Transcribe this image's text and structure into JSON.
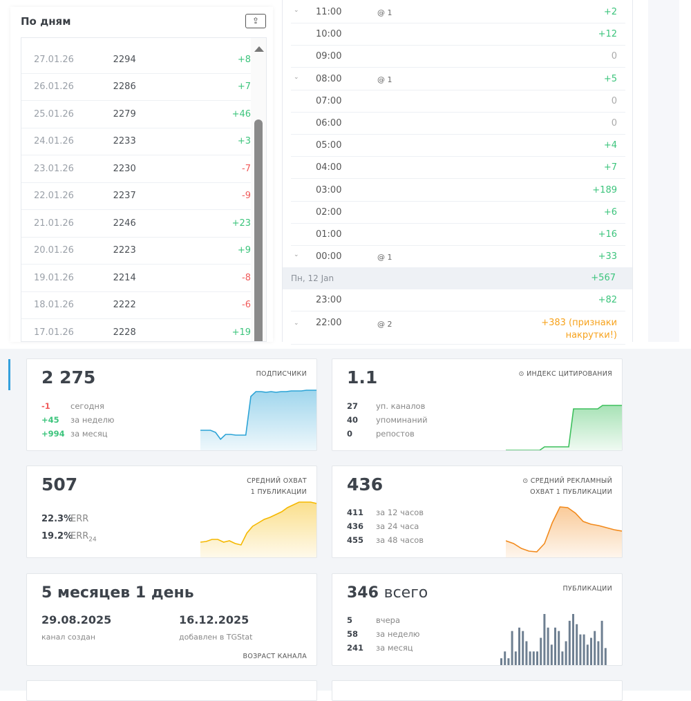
{
  "daily": {
    "title": "По дням",
    "export_icon": "upload-icon",
    "rows": [
      {
        "date": "27.01.26",
        "value": "2294",
        "change": "+8",
        "type": "pos"
      },
      {
        "date": "26.01.26",
        "value": "2286",
        "change": "+7",
        "type": "pos"
      },
      {
        "date": "25.01.26",
        "value": "2279",
        "change": "+46",
        "type": "pos"
      },
      {
        "date": "24.01.26",
        "value": "2233",
        "change": "+3",
        "type": "pos"
      },
      {
        "date": "23.01.26",
        "value": "2230",
        "change": "-7",
        "type": "neg"
      },
      {
        "date": "22.01.26",
        "value": "2237",
        "change": "-9",
        "type": "neg"
      },
      {
        "date": "21.01.26",
        "value": "2246",
        "change": "+23",
        "type": "pos"
      },
      {
        "date": "20.01.26",
        "value": "2223",
        "change": "+9",
        "type": "pos"
      },
      {
        "date": "19.01.26",
        "value": "2214",
        "change": "-8",
        "type": "neg"
      },
      {
        "date": "18.01.26",
        "value": "2222",
        "change": "-6",
        "type": "neg"
      },
      {
        "date": "17.01.26",
        "value": "2228",
        "change": "+19",
        "type": "pos"
      }
    ]
  },
  "hourly": {
    "rows": [
      {
        "time": "11:00",
        "mentions": "@ 1",
        "change": "+2",
        "type": "pos",
        "expand": true
      },
      {
        "time": "10:00",
        "change": "+12",
        "type": "pos"
      },
      {
        "time": "09:00",
        "change": "0",
        "type": "zero"
      },
      {
        "time": "08:00",
        "mentions": "@ 1",
        "change": "+5",
        "type": "pos",
        "expand": true
      },
      {
        "time": "07:00",
        "change": "0",
        "type": "zero"
      },
      {
        "time": "06:00",
        "change": "0",
        "type": "zero"
      },
      {
        "time": "05:00",
        "change": "+4",
        "type": "pos"
      },
      {
        "time": "04:00",
        "change": "+7",
        "type": "pos"
      },
      {
        "time": "03:00",
        "change": "+189",
        "type": "pos"
      },
      {
        "time": "02:00",
        "change": "+6",
        "type": "pos"
      },
      {
        "time": "01:00",
        "change": "+16",
        "type": "pos"
      },
      {
        "time": "00:00",
        "mentions": "@ 1",
        "change": "+33",
        "type": "pos",
        "expand": true
      }
    ],
    "day_header": {
      "label": "Пн, 12 Jan",
      "change": "+567"
    },
    "rows2": [
      {
        "time": "23:00",
        "change": "+82",
        "type": "pos"
      },
      {
        "time": "22:00",
        "mentions": "@ 2",
        "change": "+383 (признаки",
        "change2": "накрутки!)",
        "type": "warn",
        "expand": true
      }
    ]
  },
  "cards": {
    "subscribers": {
      "value": "2 275",
      "label": "ПОДПИСЧИКИ",
      "stats": [
        {
          "n": "-1",
          "s": "сегодня",
          "type": "neg"
        },
        {
          "n": "+45",
          "s": "за неделю",
          "type": "pos"
        },
        {
          "n": "+994",
          "s": "за месяц",
          "type": "pos"
        }
      ],
      "color": "#2ba3d6"
    },
    "citation": {
      "value": "1.1",
      "label": "ИНДЕКС ЦИТИРОВАНИЯ",
      "icon": "info-icon",
      "stats": [
        {
          "n": "27",
          "s": "уп. каналов"
        },
        {
          "n": "40",
          "s": "упоминаний"
        },
        {
          "n": "0",
          "s": "репостов"
        }
      ],
      "color": "#3cbf5c"
    },
    "reach": {
      "value": "507",
      "label1": "СРЕДНИЙ ОХВАТ",
      "label2": "1 ПУБЛИКАЦИИ",
      "stats": [
        {
          "n": "22.3%",
          "s": "ERR"
        },
        {
          "n": "19.2%",
          "s": "ERR",
          "sub": "24"
        }
      ],
      "color": "#f5b800"
    },
    "ad_reach": {
      "value": "436",
      "label1": "СРЕДНИЙ РЕКЛАМНЫЙ",
      "label2": "ОХВАТ 1 ПУБЛИКАЦИИ",
      "icon": "info-icon",
      "stats": [
        {
          "n": "411",
          "s": "за 12 часов"
        },
        {
          "n": "436",
          "s": "за 24 часа"
        },
        {
          "n": "455",
          "s": "за 48 часов"
        }
      ],
      "color": "#f28a1c"
    },
    "age": {
      "value": "5 месяцев 1 день",
      "created": "29.08.2025",
      "created_label": "канал создан",
      "added": "16.12.2025",
      "added_label": "добавлен в TGStat",
      "label": "ВОЗРАСТ КАНАЛА"
    },
    "posts": {
      "value": "346",
      "value_suffix": "всего",
      "label": "ПУБЛИКАЦИИ",
      "stats": [
        {
          "n": "5",
          "s": "вчера"
        },
        {
          "n": "58",
          "s": "за неделю"
        },
        {
          "n": "241",
          "s": "за месяц"
        }
      ],
      "bars": [
        2,
        4,
        2,
        10,
        4,
        11,
        10,
        7,
        4,
        4,
        4,
        8,
        15,
        11,
        6,
        11,
        10,
        4,
        7,
        13,
        15,
        12,
        9,
        9,
        6,
        8,
        10,
        7,
        13,
        5
      ],
      "color": "#6e7f91"
    }
  }
}
